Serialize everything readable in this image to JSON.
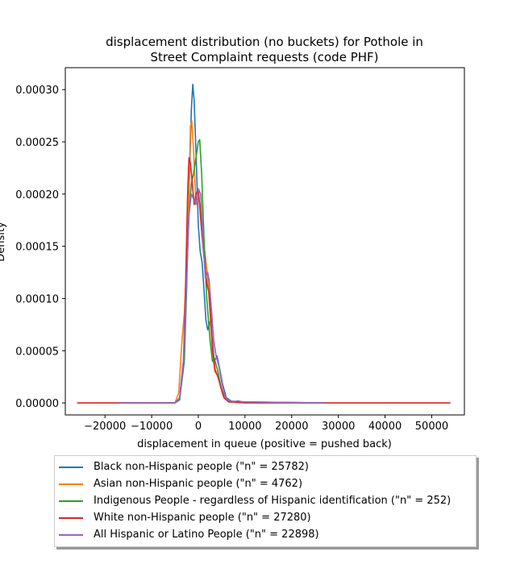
{
  "chart_data": {
    "type": "line",
    "title_lines": [
      "displacement distribution (no buckets)  for Pothole in",
      "Street Complaint requests (code PHF)"
    ],
    "xlabel": "displacement in queue (positive = pushed back)",
    "ylabel": "Density",
    "xlim": [
      -28500,
      57000
    ],
    "ylim": [
      -1.15e-05,
      0.000321
    ],
    "xticks": [
      -20000,
      -10000,
      0,
      10000,
      20000,
      30000,
      40000,
      50000
    ],
    "xtick_labels": [
      "−20000",
      "−10000",
      "0",
      "10000",
      "20000",
      "30000",
      "40000",
      "50000"
    ],
    "yticks": [
      0,
      5e-05,
      0.0001,
      0.00015,
      0.0002,
      0.00025,
      0.0003
    ],
    "ytick_labels": [
      "0.00000",
      "0.00005",
      "0.00010",
      "0.00015",
      "0.00020",
      "0.00025",
      "0.00030"
    ],
    "legend_position": "below",
    "series": [
      {
        "name": "Black non-Hispanic people (\"n\" = 25782)",
        "color": "#1f77b4",
        "points": [
          [
            -17000,
            0
          ],
          [
            -5000,
            0
          ],
          [
            -4000,
            3e-06
          ],
          [
            -3000,
            4e-05
          ],
          [
            -2500,
            0.00011
          ],
          [
            -2000,
            0.0002
          ],
          [
            -1500,
            0.00028
          ],
          [
            -1200,
            0.000305
          ],
          [
            -900,
            0.00029
          ],
          [
            -500,
            0.00024
          ],
          [
            0,
            0.00017
          ],
          [
            400,
            0.000145
          ],
          [
            800,
            0.000135
          ],
          [
            1200,
            0.00011
          ],
          [
            1600,
            8e-05
          ],
          [
            2000,
            7e-05
          ],
          [
            2500,
            7.8e-05
          ],
          [
            3000,
            6e-05
          ],
          [
            3400,
            4e-05
          ],
          [
            4000,
            4.5e-05
          ],
          [
            4600,
            3.2e-05
          ],
          [
            5200,
            1.8e-05
          ],
          [
            6000,
            5e-06
          ],
          [
            7000,
            2e-06
          ],
          [
            9000,
            1e-06
          ],
          [
            27000,
            0
          ]
        ]
      },
      {
        "name": "Asian non-Hispanic people (\"n\" = 4762)",
        "color": "#ff7f0e",
        "points": [
          [
            -17000,
            0
          ],
          [
            -5000,
            0
          ],
          [
            -4200,
            1e-05
          ],
          [
            -3500,
            6e-05
          ],
          [
            -3000,
            8.5e-05
          ],
          [
            -2500,
            0.00013
          ],
          [
            -2000,
            0.0002
          ],
          [
            -1700,
            0.000265
          ],
          [
            -1400,
            0.00027
          ],
          [
            -1000,
            0.00024
          ],
          [
            -500,
            0.00019
          ],
          [
            0,
            0.000195
          ],
          [
            400,
            0.00019
          ],
          [
            800,
            0.00016
          ],
          [
            1400,
            0.000145
          ],
          [
            2000,
            0.00012
          ],
          [
            2500,
            8.5e-05
          ],
          [
            3000,
            5e-05
          ],
          [
            3500,
            3e-05
          ],
          [
            4000,
            2.7e-05
          ],
          [
            4500,
            2.2e-05
          ],
          [
            5200,
            1e-05
          ],
          [
            6000,
            3e-06
          ],
          [
            8000,
            1e-06
          ],
          [
            27000,
            0
          ]
        ]
      },
      {
        "name": "Indigenous People - regardless of Hispanic identification (\"n\" = 252)",
        "color": "#2ca02c",
        "points": [
          [
            -17000,
            0
          ],
          [
            -5000,
            0
          ],
          [
            -4000,
            5e-06
          ],
          [
            -3000,
            4.5e-05
          ],
          [
            -2500,
            0.00012
          ],
          [
            -2000,
            0.00018
          ],
          [
            -1500,
            0.00021
          ],
          [
            -1000,
            0.00022
          ],
          [
            -500,
            0.000235
          ],
          [
            0,
            0.00025
          ],
          [
            300,
            0.000252
          ],
          [
            700,
            0.00022
          ],
          [
            1200,
            0.00016
          ],
          [
            1800,
            0.0001
          ],
          [
            2500,
            6e-05
          ],
          [
            3000,
            4e-05
          ],
          [
            3600,
            4e-05
          ],
          [
            4200,
            3e-05
          ],
          [
            4800,
            1.5e-05
          ],
          [
            5500,
            5e-06
          ],
          [
            6500,
            1e-06
          ],
          [
            27000,
            0
          ]
        ]
      },
      {
        "name": "White non-Hispanic people (\"n\" = 27280)",
        "color": "#d62728",
        "points": [
          [
            -26000,
            0
          ],
          [
            -5000,
            0
          ],
          [
            -4000,
            5e-06
          ],
          [
            -3200,
            4e-05
          ],
          [
            -2700,
            0.00012
          ],
          [
            -2300,
            0.0002
          ],
          [
            -2000,
            0.000235
          ],
          [
            -1700,
            0.00023
          ],
          [
            -1300,
            0.00021
          ],
          [
            -900,
            0.00019
          ],
          [
            -500,
            0.0002
          ],
          [
            0,
            0.000205
          ],
          [
            600,
            0.00017
          ],
          [
            1200,
            0.00014
          ],
          [
            1800,
            0.000115
          ],
          [
            2300,
            0.000105
          ],
          [
            2700,
            8e-05
          ],
          [
            3100,
            5e-05
          ],
          [
            3600,
            3.2e-05
          ],
          [
            4200,
            2.5e-05
          ],
          [
            4800,
            1.5e-05
          ],
          [
            5500,
            5e-06
          ],
          [
            6500,
            1e-06
          ],
          [
            10000,
            0
          ],
          [
            54000,
            0
          ]
        ]
      },
      {
        "name": "All Hispanic or Latino People (\"n\" = 22898)",
        "color": "#9467bd",
        "points": [
          [
            -17000,
            0
          ],
          [
            -5000,
            0
          ],
          [
            -4000,
            5e-06
          ],
          [
            -3200,
            4e-05
          ],
          [
            -2500,
            0.00012
          ],
          [
            -2000,
            0.00018
          ],
          [
            -1500,
            0.0002
          ],
          [
            -1000,
            0.000195
          ],
          [
            -500,
            0.00019
          ],
          [
            0,
            0.000205
          ],
          [
            500,
            0.0002
          ],
          [
            1000,
            0.000155
          ],
          [
            1500,
            0.00012
          ],
          [
            2000,
            0.000125
          ],
          [
            2300,
            0.000118
          ],
          [
            2800,
            9e-05
          ],
          [
            3300,
            6e-05
          ],
          [
            3800,
            4.5e-05
          ],
          [
            4400,
            3.5e-05
          ],
          [
            5000,
            2e-05
          ],
          [
            5600,
            8e-06
          ],
          [
            6200,
            3e-06
          ],
          [
            7500,
            1e-06
          ],
          [
            8500,
            2e-06
          ],
          [
            9500,
            1e-06
          ],
          [
            27000,
            0
          ]
        ]
      }
    ]
  }
}
